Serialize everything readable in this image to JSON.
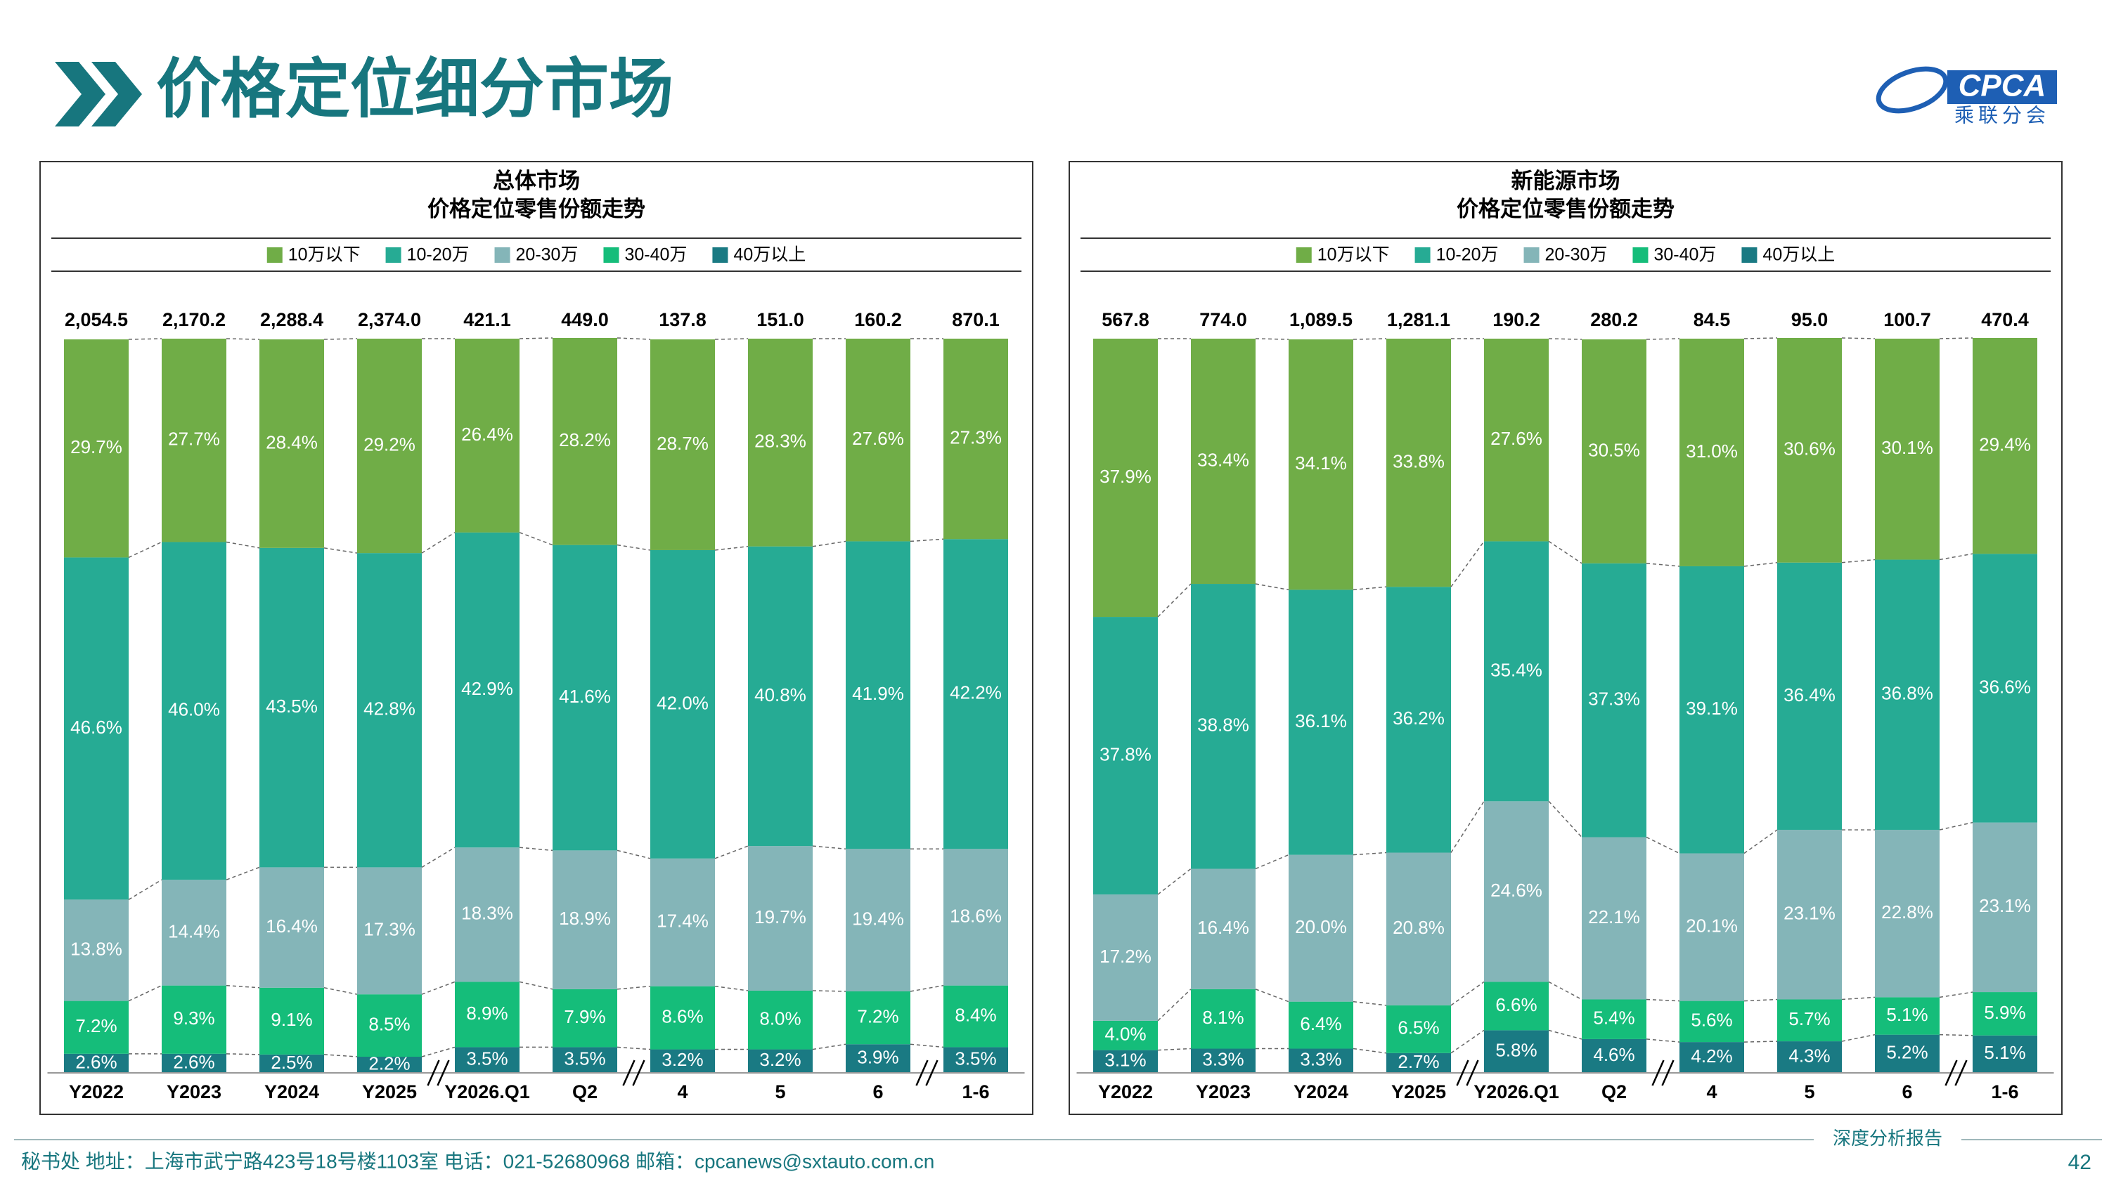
{
  "header": {
    "title": "价格定位细分市场",
    "logo": "CPCA",
    "logo_sub": "乘联分会"
  },
  "chart_data": [
    {
      "type": "stacked_bar",
      "title": "总体市场",
      "subtitle": "价格定位零售份额走势",
      "categories": [
        "Y2022",
        "Y2023",
        "Y2024",
        "Y2025",
        "Y2026.Q1",
        "Q2",
        "4",
        "5",
        "6",
        "1-6"
      ],
      "ylim": [
        0,
        100
      ],
      "totals": {
        "values": [
          2054.5,
          2170.2,
          2288.4,
          2374.0,
          421.1,
          449.0,
          137.8,
          151.0,
          160.2,
          870.1
        ],
        "value_labels": [
          "2,054.5",
          "2,170.2",
          "2,288.4",
          "2,374.0",
          "421.1",
          "449.0",
          "137.8",
          "151.0",
          "160.2",
          "870.1"
        ]
      },
      "series": [
        {
          "name": "10万以下",
          "color": "#70ad47",
          "values": [
            29.7,
            27.7,
            28.4,
            29.2,
            26.4,
            28.2,
            28.7,
            28.3,
            27.6,
            27.3
          ],
          "value_labels": [
            "29.7%",
            "27.7%",
            "28.4%",
            "29.2%",
            "26.4%",
            "28.2%",
            "28.7%",
            "28.3%",
            "27.6%",
            "27.3%"
          ]
        },
        {
          "name": "10-20万",
          "color": "#26ab94",
          "values": [
            46.6,
            46.0,
            43.5,
            42.8,
            42.9,
            41.6,
            42.0,
            40.8,
            41.9,
            42.2
          ],
          "value_labels": [
            "46.6%",
            "46.0%",
            "43.5%",
            "42.8%",
            "42.9%",
            "41.6%",
            "42.0%",
            "40.8%",
            "41.9%",
            "42.2%"
          ]
        },
        {
          "name": "20-30万",
          "color": "#84b5b8",
          "values": [
            13.8,
            14.4,
            16.4,
            17.3,
            18.3,
            18.9,
            17.4,
            19.7,
            19.4,
            18.6
          ],
          "value_labels": [
            "13.8%",
            "14.4%",
            "16.4%",
            "17.3%",
            "18.3%",
            "18.9%",
            "17.4%",
            "19.7%",
            "19.4%",
            "18.6%"
          ]
        },
        {
          "name": "30-40万",
          "color": "#15bd7a",
          "values": [
            7.2,
            9.3,
            9.1,
            8.5,
            8.9,
            7.9,
            8.6,
            8.0,
            7.2,
            8.4
          ],
          "value_labels": [
            "7.2%",
            "9.3%",
            "9.1%",
            "8.5%",
            "8.9%",
            "7.9%",
            "8.6%",
            "8.0%",
            "7.2%",
            "8.4%"
          ]
        },
        {
          "name": "40万以上",
          "color": "#1a7a83",
          "values": [
            2.6,
            2.6,
            2.5,
            2.2,
            3.5,
            3.5,
            3.2,
            3.2,
            3.9,
            3.5
          ],
          "value_labels": [
            "2.6%",
            "2.6%",
            "2.5%",
            "2.2%",
            "3.5%",
            "3.5%",
            "3.2%",
            "3.2%",
            "3.9%",
            "3.5%"
          ]
        }
      ]
    },
    {
      "type": "stacked_bar",
      "title": "新能源市场",
      "subtitle": "价格定位零售份额走势",
      "categories": [
        "Y2022",
        "Y2023",
        "Y2024",
        "Y2025",
        "Y2026.Q1",
        "Q2",
        "4",
        "5",
        "6",
        "1-6"
      ],
      "ylim": [
        0,
        100
      ],
      "totals": {
        "values": [
          567.8,
          774.0,
          1089.5,
          1281.1,
          190.2,
          280.2,
          84.5,
          95.0,
          100.7,
          470.4
        ],
        "value_labels": [
          "567.8",
          "774.0",
          "1,089.5",
          "1,281.1",
          "190.2",
          "280.2",
          "84.5",
          "95.0",
          "100.7",
          "470.4"
        ]
      },
      "series": [
        {
          "name": "10万以下",
          "color": "#70ad47",
          "values": [
            37.9,
            33.4,
            34.1,
            33.8,
            27.6,
            30.5,
            31.0,
            30.6,
            30.1,
            29.4
          ],
          "value_labels": [
            "37.9%",
            "33.4%",
            "34.1%",
            "33.8%",
            "27.6%",
            "30.5%",
            "31.0%",
            "30.6%",
            "30.1%",
            "29.4%"
          ]
        },
        {
          "name": "10-20万",
          "color": "#26ab94",
          "values": [
            37.8,
            38.8,
            36.1,
            36.2,
            35.4,
            37.3,
            39.1,
            36.4,
            36.8,
            36.6
          ],
          "value_labels": [
            "37.8%",
            "38.8%",
            "36.1%",
            "36.2%",
            "35.4%",
            "37.3%",
            "39.1%",
            "36.4%",
            "36.8%",
            "36.6%"
          ]
        },
        {
          "name": "20-30万",
          "color": "#84b5b8",
          "values": [
            17.2,
            16.4,
            20.0,
            20.8,
            24.6,
            22.1,
            20.1,
            23.1,
            22.8,
            23.1
          ],
          "value_labels": [
            "17.2%",
            "16.4%",
            "20.0%",
            "20.8%",
            "24.6%",
            "22.1%",
            "20.1%",
            "23.1%",
            "22.8%",
            "23.1%"
          ]
        },
        {
          "name": "30-40万",
          "color": "#15bd7a",
          "values": [
            4.0,
            8.1,
            6.4,
            6.5,
            6.6,
            5.4,
            5.6,
            5.7,
            5.1,
            5.9
          ],
          "value_labels": [
            "4.0%",
            "8.1%",
            "6.4%",
            "6.5%",
            "6.6%",
            "5.4%",
            "5.6%",
            "5.7%",
            "5.1%",
            "5.9%"
          ]
        },
        {
          "name": "40万以上",
          "color": "#1a7a83",
          "values": [
            3.1,
            3.3,
            3.3,
            2.7,
            5.8,
            4.6,
            4.2,
            4.3,
            5.2,
            5.1
          ],
          "value_labels": [
            "3.1%",
            "3.3%",
            "3.3%",
            "2.7%",
            "5.8%",
            "4.6%",
            "4.2%",
            "4.3%",
            "5.2%",
            "5.1%"
          ]
        }
      ]
    }
  ],
  "footer": {
    "contact": "秘书处   地址：上海市武宁路423号18号楼1103室   电话：021-52680968    邮箱：cpcanews@sxtauto.com.cn",
    "tag": "深度分析报告",
    "page": "42"
  }
}
